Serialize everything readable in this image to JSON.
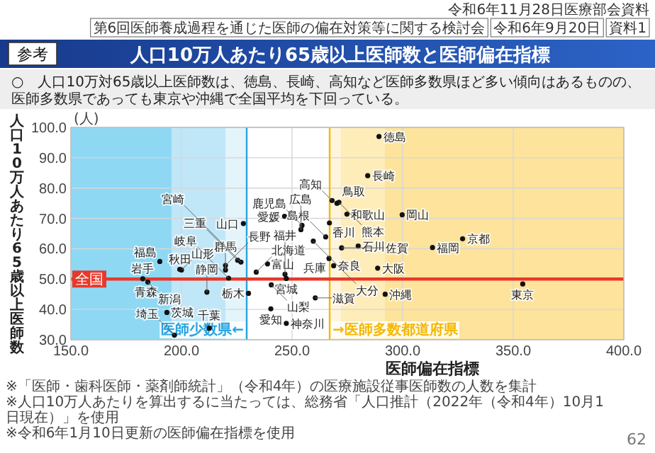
{
  "chart_data": {
    "type": "scatter",
    "title": "人口10万人あたり65歳以上医師数と医師偏在指標",
    "subtitle": "○　人口10万対65歳以上医師数は、徳島、長崎、高知など医師多数県ほど多い傾向はあるものの、医師多数県であっても東京や沖縄で全国平均を下回っている。",
    "xlabel": "医師偏在指標",
    "ylabel": "人口10万人あたり65歳以上医師数",
    "annotations": [
      "参考",
      "令和6年11月28日医療部会資料",
      "第6回医師養成過程を通じた医師の偏在対策等に関する検討会",
      "令和6年9月20日",
      "資料1",
      "(人)",
      "※「医師・歯科医師・薬剤師統計」（令和4年）の医療施設従事医師数の人数を集計",
      "※人口10万人あたりを算出するに当たっては、総務省「人口推計（2022年（令和4年）10月1日現在）」を使用",
      "※令和6年1月10日更新の医師偏在指標を使用",
      "62",
      {
        "text": "北海道",
        "x": 233.8,
        "y": 52.3
      },
      {
        "text": "青森",
        "x": 184.0,
        "y": 49.3
      },
      {
        "text": "岩手",
        "x": 182.5,
        "y": 50.1
      },
      {
        "text": "宮城",
        "x": 247.4,
        "y": 50.2
      },
      {
        "text": "秋田",
        "x": 199.2,
        "y": 53.2
      },
      {
        "text": "山形",
        "x": 200.0,
        "y": 53.0
      },
      {
        "text": "福島",
        "x": 190.2,
        "y": 55.8
      },
      {
        "text": "茨城",
        "x": 193.4,
        "y": 39.0
      },
      {
        "text": "栃木",
        "x": 230.3,
        "y": 45.3
      },
      {
        "text": "群馬",
        "x": 219.9,
        "y": 53.0
      },
      {
        "text": "埼玉",
        "x": 196.8,
        "y": 31.5
      },
      {
        "text": "千葉",
        "x": 212.6,
        "y": 33.8
      },
      {
        "text": "東京",
        "x": 354.3,
        "y": 48.4
      },
      {
        "text": "神奈川",
        "x": 247.4,
        "y": 35.4
      },
      {
        "text": "新潟",
        "x": 184.8,
        "y": 49.0
      },
      {
        "text": "富山",
        "x": 238.9,
        "y": 55.0
      },
      {
        "text": "石川",
        "x": 279.9,
        "y": 60.9
      },
      {
        "text": "福井",
        "x": 246.8,
        "y": 51.6
      },
      {
        "text": "山梨",
        "x": 240.6,
        "y": 48.1
      },
      {
        "text": "長野",
        "x": 219.9,
        "y": 54.5
      },
      {
        "text": "岐阜",
        "x": 221.3,
        "y": 50.3
      },
      {
        "text": "静岡",
        "x": 211.5,
        "y": 45.7
      },
      {
        "text": "愛知",
        "x": 240.4,
        "y": 40.2
      },
      {
        "text": "三重",
        "x": 225.4,
        "y": 56.2
      },
      {
        "text": "滋賀",
        "x": 260.5,
        "y": 43.8
      },
      {
        "text": "京都",
        "x": 327.1,
        "y": 63.3
      },
      {
        "text": "大阪",
        "x": 288.7,
        "y": 53.6
      },
      {
        "text": "兵庫",
        "x": 266.7,
        "y": 56.8
      },
      {
        "text": "奈良",
        "x": 268.8,
        "y": 54.4
      },
      {
        "text": "和歌山",
        "x": 274.8,
        "y": 71.4
      },
      {
        "text": "鳥取",
        "x": 270.3,
        "y": 75.0
      },
      {
        "text": "島根",
        "x": 265.2,
        "y": 63.9
      },
      {
        "text": "岡山",
        "x": 299.8,
        "y": 71.2
      },
      {
        "text": "広島",
        "x": 254.0,
        "y": 66.3
      },
      {
        "text": "山口",
        "x": 228.0,
        "y": 68.3
      },
      {
        "text": "徳島",
        "x": 289.3,
        "y": 97.0
      },
      {
        "text": "香川",
        "x": 266.9,
        "y": 68.5
      },
      {
        "text": "愛媛",
        "x": 246.6,
        "y": 70.7
      },
      {
        "text": "高知",
        "x": 268.1,
        "y": 75.9
      },
      {
        "text": "福岡",
        "x": 313.5,
        "y": 60.4
      },
      {
        "text": "佐賀",
        "x": 272.4,
        "y": 60.3
      },
      {
        "text": "長崎",
        "x": 284.2,
        "y": 84.1
      },
      {
        "text": "熊本",
        "x": 271.2,
        "y": 75.3
      },
      {
        "text": "大分",
        "x": 259.6,
        "y": 62.5
      },
      {
        "text": "宮崎",
        "x": 226.9,
        "y": 55.6
      },
      {
        "text": "鹿児島",
        "x": 254.5,
        "y": 67.7
      },
      {
        "text": "沖縄",
        "x": 292.1,
        "y": 45.0
      }
    ],
    "x": [
      233.8,
      184.0,
      182.5,
      247.4,
      199.2,
      200.0,
      190.2,
      193.4,
      230.3,
      219.9,
      196.8,
      212.6,
      354.3,
      247.4,
      184.8,
      238.9,
      279.9,
      246.8,
      240.6,
      219.9,
      221.3,
      211.5,
      240.4,
      225.4,
      260.5,
      327.1,
      288.7,
      266.7,
      268.8,
      274.8,
      270.3,
      265.2,
      299.8,
      254.0,
      228.0,
      289.3,
      266.9,
      246.6,
      268.1,
      313.5,
      272.4,
      284.2,
      271.2,
      259.6,
      226.9,
      254.5,
      292.1
    ],
    "values": [
      52.3,
      null,
      50.1,
      50.2,
      53.2,
      53.0,
      55.8,
      39.0,
      45.3,
      53.0,
      31.5,
      33.8,
      48.4,
      35.4,
      49.0,
      55.0,
      60.9,
      51.6,
      48.1,
      54.5,
      50.3,
      45.7,
      40.2,
      56.2,
      43.8,
      63.3,
      53.6,
      56.8,
      54.4,
      71.4,
      75.0,
      63.9,
      71.2,
      66.3,
      68.3,
      97.0,
      68.5,
      70.7,
      75.9,
      60.4,
      60.3,
      84.1,
      75.3,
      62.5,
      55.6,
      67.7,
      45.0
    ],
    "color": "#111111",
    "marker": "circle",
    "grid": true,
    "xlim": [
      150,
      400
    ],
    "ylim": [
      30,
      100
    ],
    "xticks": [
      {
        "value": 150,
        "label": "150.0"
      },
      {
        "value": 200,
        "label": "200.0"
      },
      {
        "value": 250,
        "label": "250.0"
      },
      {
        "value": 300,
        "label": "300.0"
      },
      {
        "value": 350,
        "label": "350.0"
      },
      {
        "value": 400,
        "label": "400.0"
      }
    ],
    "yticks": [
      {
        "value": 30,
        "label": "30.0"
      },
      {
        "value": 40,
        "label": "40.0"
      },
      {
        "value": 50,
        "label": "50.0"
      },
      {
        "value": 60,
        "label": "60.0"
      },
      {
        "value": 70,
        "label": "70.0"
      },
      {
        "value": 80,
        "label": "80.0"
      },
      {
        "value": 90,
        "label": "90.0"
      },
      {
        "value": 100,
        "label": "100.0"
      }
    ],
    "bands": [
      {
        "axis": "x",
        "from": 150,
        "to": 195.5,
        "color": "#8ed8f4"
      },
      {
        "axis": "x",
        "from": 195.5,
        "to": 220,
        "color": "#c0e7f8"
      },
      {
        "axis": "x",
        "from": 220,
        "to": 229.5,
        "color": "#e3f4fb"
      },
      {
        "axis": "x",
        "from": 267,
        "to": 272,
        "color": "#fef5dc"
      },
      {
        "axis": "x",
        "from": 272,
        "to": 292,
        "color": "#feecb9"
      },
      {
        "axis": "x",
        "from": 292,
        "to": 400,
        "color": "#fde39b"
      }
    ],
    "ref_lines": [
      {
        "axis": "x",
        "value": 229.5,
        "label": "医師少数県←",
        "color": "#29a3e0"
      },
      {
        "axis": "x",
        "value": 267,
        "label": "→医師多数都道府県",
        "color": "#f5b800"
      },
      {
        "axis": "y",
        "value": 50,
        "label": "全国",
        "color": "#e8392b"
      }
    ]
  }
}
